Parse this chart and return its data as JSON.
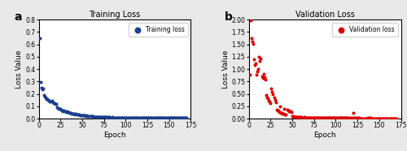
{
  "title_a": "Training Loss",
  "title_b": "Validation Loss",
  "xlabel": "Epoch",
  "ylabel": "Loss Value",
  "label_a": "Training loss",
  "label_b": "Validation loss",
  "color_a": "#1a3e8c",
  "color_b": "#dd0000",
  "ylim_a": [
    0,
    0.8
  ],
  "ylim_b": [
    0,
    2.0
  ],
  "xlim": [
    0,
    175
  ],
  "yticks_a": [
    0.0,
    0.1,
    0.2,
    0.3,
    0.4,
    0.5,
    0.6,
    0.7,
    0.8
  ],
  "yticks_b": [
    0.0,
    0.25,
    0.5,
    0.75,
    1.0,
    1.25,
    1.5,
    1.75,
    2.0
  ],
  "xticks": [
    0,
    25,
    50,
    75,
    100,
    125,
    150,
    175
  ],
  "marker_size": 3.5,
  "panel_a_label": "a",
  "panel_b_label": "b",
  "fig_bg": "#e8e8e8",
  "axes_bg": "#ffffff"
}
